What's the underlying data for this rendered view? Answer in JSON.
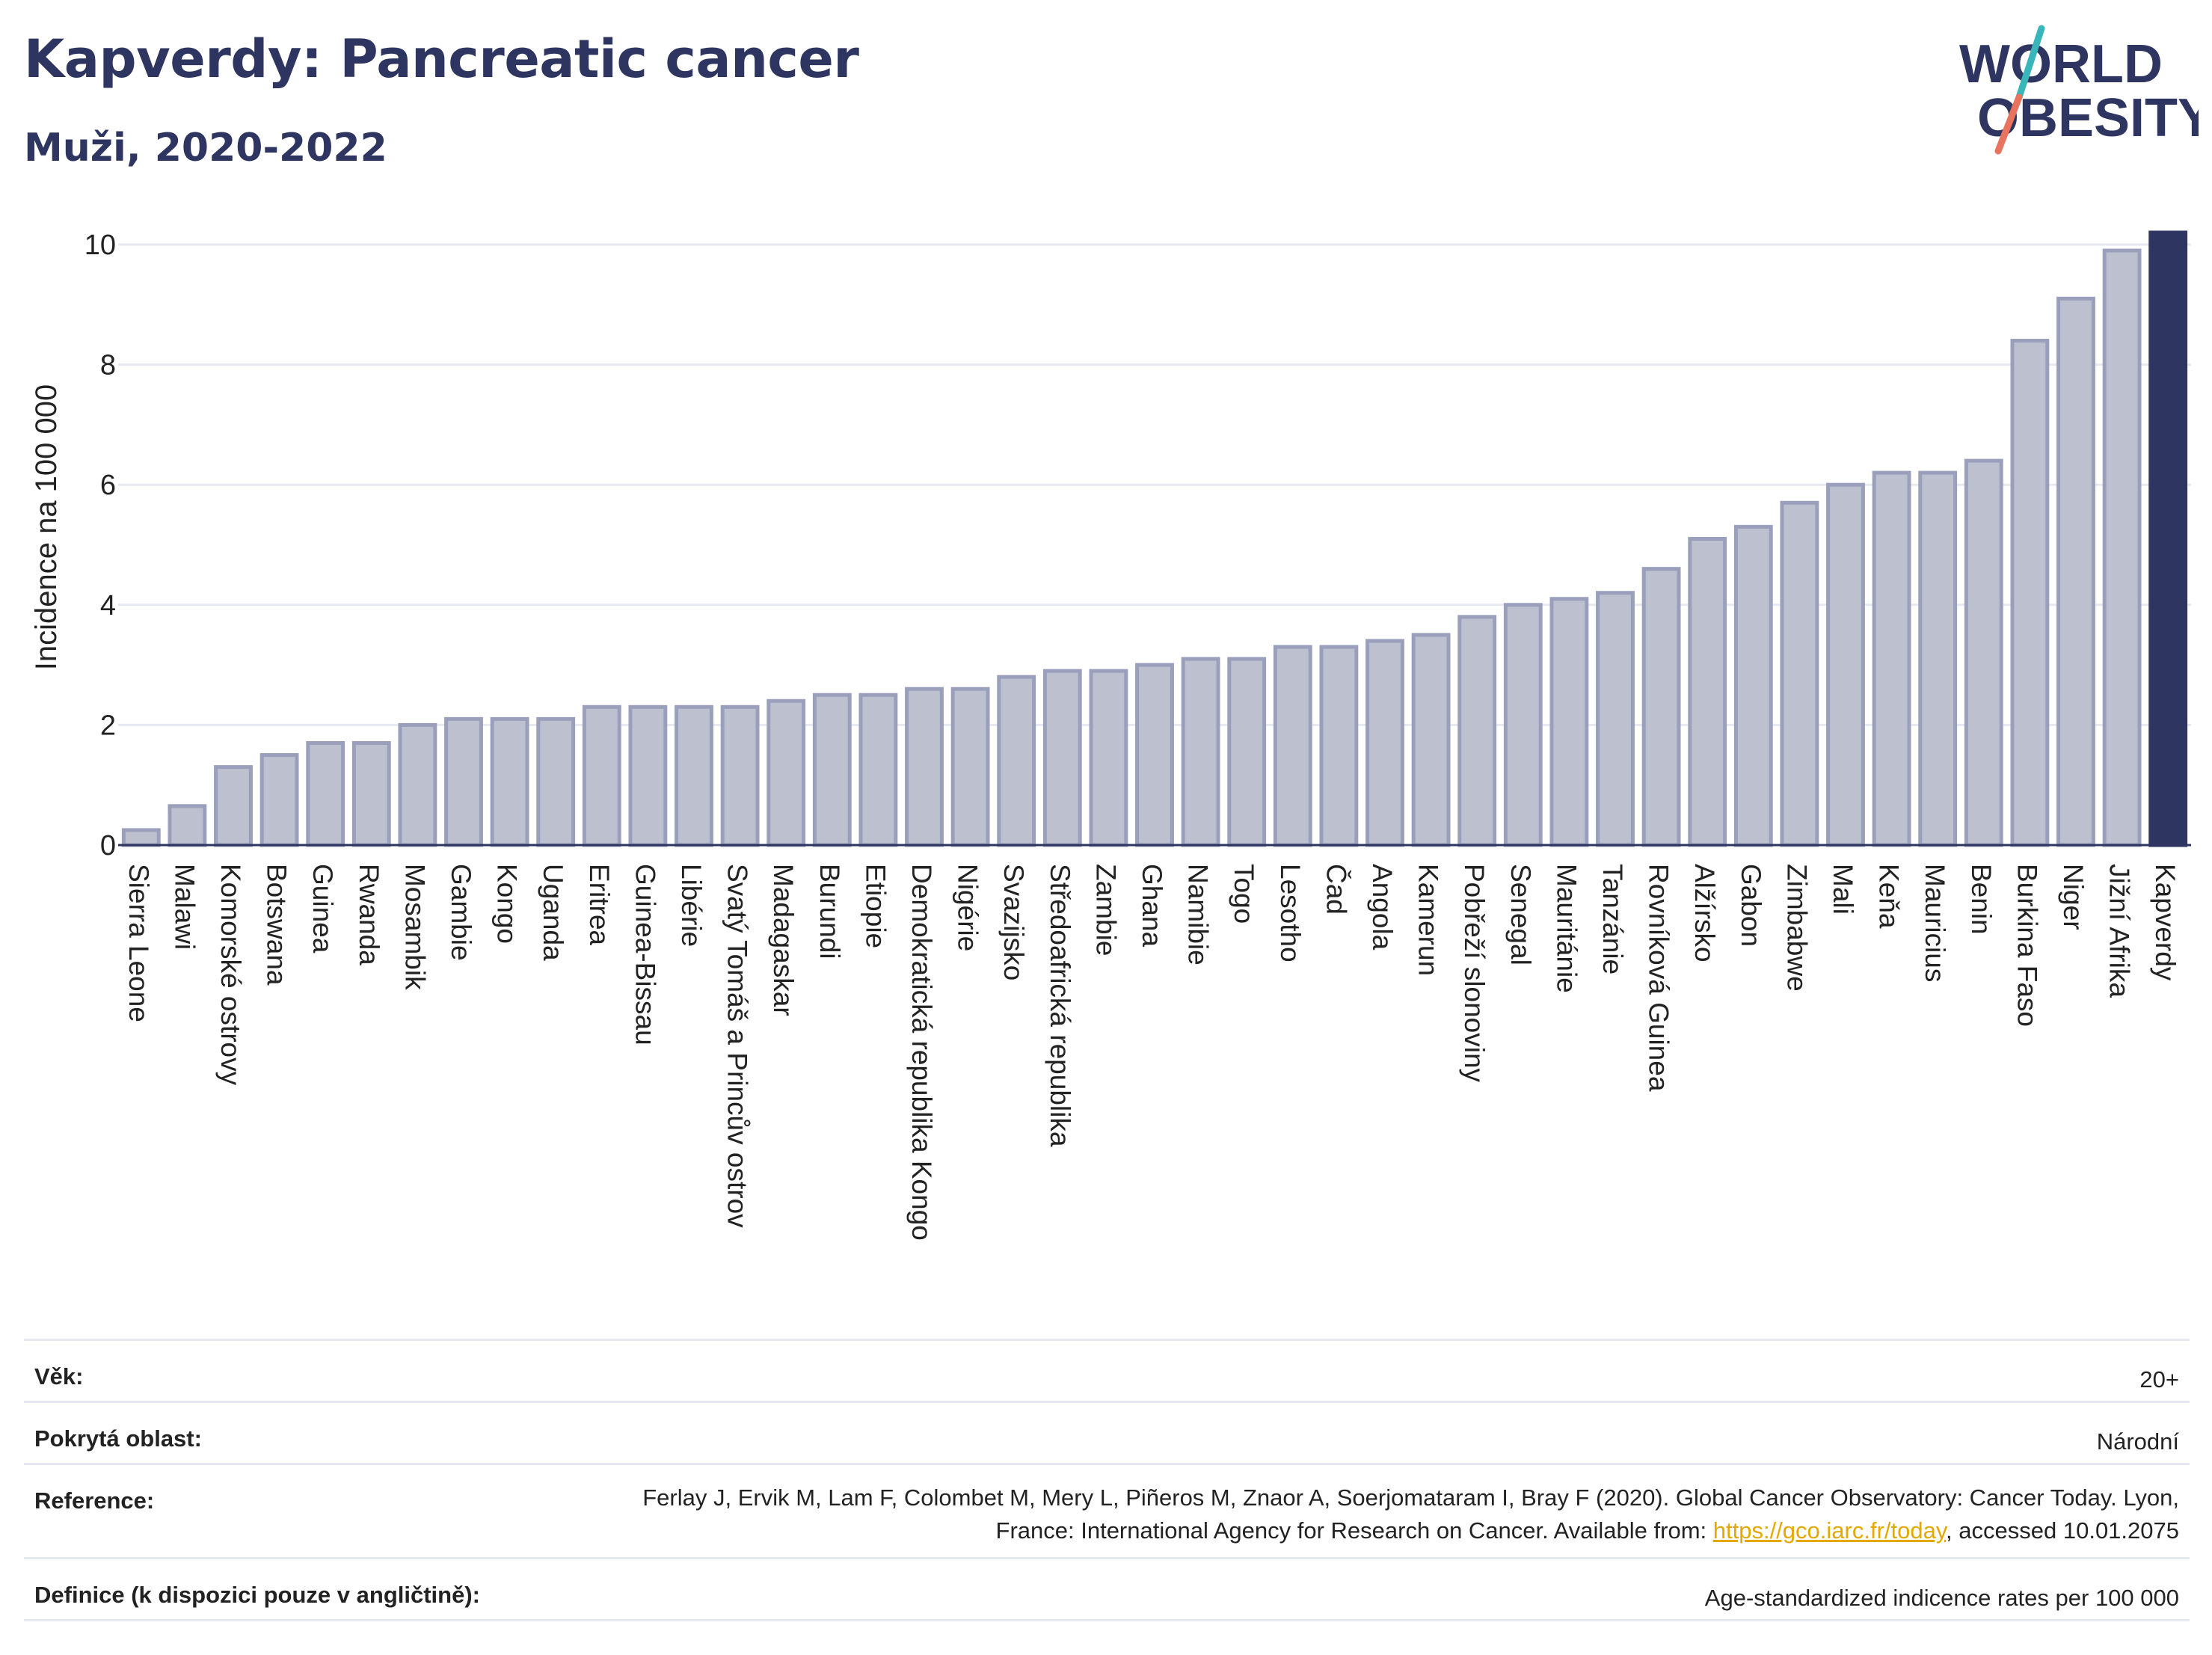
{
  "header": {
    "title": "Kapverdy: Pancreatic cancer",
    "subtitle": "Muži, 2020-2022"
  },
  "logo": {
    "line1": "WORLD",
    "line2": "OBESITY"
  },
  "colors": {
    "bar_default_fill": "#bcc0cf",
    "bar_default_stroke": "#9aa0bb",
    "bar_highlight": "#2d3560",
    "text": "#2d3560",
    "grid": "#e6e9ef",
    "link": "#e5a800",
    "logo_teal": "#3ab5b9",
    "logo_coral": "#e8735e"
  },
  "chart_data": {
    "type": "bar",
    "ylabel": "Incidence na 100 000",
    "ylim": [
      0,
      10
    ],
    "yticks": [
      0,
      2,
      4,
      6,
      8,
      10
    ],
    "highlight": "Kapverdy",
    "categories": [
      "Sierra Leone",
      "Malawi",
      "Komorské ostrovy",
      "Botswana",
      "Guinea",
      "Rwanda",
      "Mosambik",
      "Gambie",
      "Kongo",
      "Uganda",
      "Eritrea",
      "Guinea-Bissau",
      "Libérie",
      "Svatý Tomáš a Princův ostrov",
      "Madagaskar",
      "Burundi",
      "Etiopie",
      "Demokratická republika Kongo",
      "Nigérie",
      "Svazijsko",
      "Středoafrická republika",
      "Zambie",
      "Ghana",
      "Namibie",
      "Togo",
      "Lesotho",
      "Čad",
      "Angola",
      "Kamerun",
      "Pobřeží slonoviny",
      "Senegal",
      "Mauritánie",
      "Tanzánie",
      "Rovníková Guinea",
      "Alžírsko",
      "Gabon",
      "Zimbabwe",
      "Mali",
      "Keňa",
      "Mauricius",
      "Benin",
      "Burkina Faso",
      "Niger",
      "Jižní Afrika",
      "Kapverdy"
    ],
    "values": [
      0.25,
      0.65,
      1.3,
      1.5,
      1.7,
      1.7,
      2.0,
      2.1,
      2.1,
      2.1,
      2.3,
      2.3,
      2.3,
      2.3,
      2.4,
      2.5,
      2.5,
      2.6,
      2.6,
      2.8,
      2.9,
      2.9,
      3.0,
      3.1,
      3.1,
      3.3,
      3.3,
      3.4,
      3.5,
      3.8,
      4.0,
      4.1,
      4.2,
      4.6,
      5.1,
      5.3,
      5.7,
      6.0,
      6.2,
      6.2,
      6.4,
      8.4,
      9.1,
      9.9,
      10.2
    ]
  },
  "meta": [
    {
      "label": "Věk:",
      "value": "20+"
    },
    {
      "label": "Pokrytá oblast:",
      "value": "Národní"
    },
    {
      "label": "Reference:",
      "value_before": "Ferlay J, Ervik M, Lam F, Colombet M, Mery L, Piñeros M, Znaor A, Soerjomataram I, Bray F (2020). Global Cancer Observatory: Cancer Today. Lyon, France: International Agency for Research on Cancer. Available from: ",
      "link": "https://gco.iarc.fr/today",
      "value_after": ", accessed 10.01.2075"
    },
    {
      "label": "Definice (k dispozici pouze v angličtině):",
      "value": "Age-standardized indicence rates per 100 000"
    }
  ]
}
